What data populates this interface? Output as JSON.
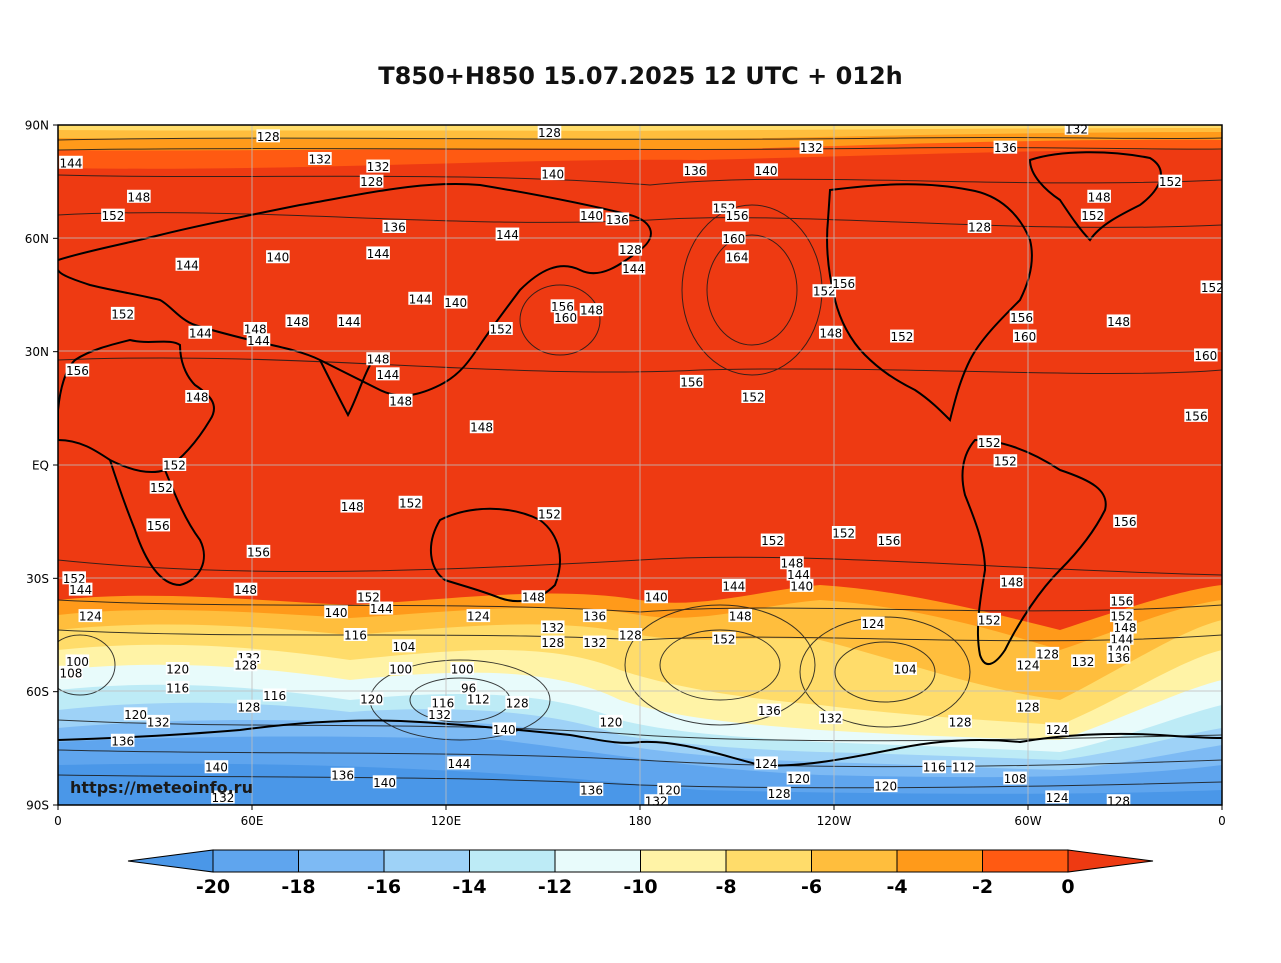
{
  "title": "T850+H850 15.07.2025 12 UTC + 012h",
  "watermark": "https://meteoinfo.ru",
  "y_ticks": [
    "90N",
    "60N",
    "30N",
    "EQ",
    "30S",
    "60S",
    "90S"
  ],
  "x_ticks": [
    "0",
    "60E",
    "120E",
    "180",
    "120W",
    "60W",
    "0"
  ],
  "colorbar": {
    "ticks": [
      "-20",
      "-18",
      "-16",
      "-14",
      "-12",
      "-10",
      "-8",
      "-6",
      "-4",
      "-2",
      "0"
    ],
    "colors": [
      "#4a97e8",
      "#5fa5ee",
      "#7dbaf4",
      "#9ed2f7",
      "#bdebf6",
      "#e8fbfb",
      "#fff3a6",
      "#ffdc6a",
      "#ffbe3d",
      "#ff9a1a",
      "#ff5a12",
      "#ee3a12"
    ]
  },
  "contour_labels": [
    {
      "t": "128",
      "lon": 65,
      "lat": 87
    },
    {
      "t": "128",
      "lon": 152,
      "lat": 88
    },
    {
      "t": "132",
      "lon": -127,
      "lat": 84
    },
    {
      "t": "132",
      "lon": -45,
      "lat": 89
    },
    {
      "t": "144",
      "lon": 4,
      "lat": 80
    },
    {
      "t": "132",
      "lon": 81,
      "lat": 81
    },
    {
      "t": "132",
      "lon": 99,
      "lat": 79
    },
    {
      "t": "128",
      "lon": 97,
      "lat": 75
    },
    {
      "t": "140",
      "lon": 153,
      "lat": 77
    },
    {
      "t": "136",
      "lon": -163,
      "lat": 78
    },
    {
      "t": "136",
      "lon": -67,
      "lat": 84
    },
    {
      "t": "140",
      "lon": -141,
      "lat": 78
    },
    {
      "t": "148",
      "lon": -38,
      "lat": 71
    },
    {
      "t": "152",
      "lon": 17,
      "lat": 66
    },
    {
      "t": "148",
      "lon": 25,
      "lat": 71
    },
    {
      "t": "136",
      "lon": 104,
      "lat": 63
    },
    {
      "t": "144",
      "lon": 139,
      "lat": 61
    },
    {
      "t": "140",
      "lon": 165,
      "lat": 66
    },
    {
      "t": "136",
      "lon": 173,
      "lat": 65
    },
    {
      "t": "128",
      "lon": 177,
      "lat": 57
    },
    {
      "t": "144",
      "lon": 178,
      "lat": 52
    },
    {
      "t": "152",
      "lon": -154,
      "lat": 68
    },
    {
      "t": "156",
      "lon": -150,
      "lat": 66
    },
    {
      "t": "160",
      "lon": -151,
      "lat": 60
    },
    {
      "t": "164",
      "lon": -150,
      "lat": 55
    },
    {
      "t": "152",
      "lon": -40,
      "lat": 66
    },
    {
      "t": "152",
      "lon": -16,
      "lat": 75
    },
    {
      "t": "128",
      "lon": -75,
      "lat": 63
    },
    {
      "t": "140",
      "lon": 68,
      "lat": 55
    },
    {
      "t": "144",
      "lon": 40,
      "lat": 53
    },
    {
      "t": "144",
      "lon": 99,
      "lat": 56
    },
    {
      "t": "144",
      "lon": 112,
      "lat": 44
    },
    {
      "t": "140",
      "lon": 123,
      "lat": 43
    },
    {
      "t": "156",
      "lon": 156,
      "lat": 42
    },
    {
      "t": "160",
      "lon": 157,
      "lat": 39
    },
    {
      "t": "148",
      "lon": 165,
      "lat": 41
    },
    {
      "t": "152",
      "lon": -123,
      "lat": 46
    },
    {
      "t": "156",
      "lon": -117,
      "lat": 48
    },
    {
      "t": "148",
      "lon": -121,
      "lat": 35
    },
    {
      "t": "152",
      "lon": -99,
      "lat": 34
    },
    {
      "t": "156",
      "lon": -62,
      "lat": 39
    },
    {
      "t": "160",
      "lon": -61,
      "lat": 34
    },
    {
      "t": "148",
      "lon": -32,
      "lat": 38
    },
    {
      "t": "160",
      "lon": -5,
      "lat": 29
    },
    {
      "t": "152",
      "lon": -3,
      "lat": 47
    },
    {
      "t": "152",
      "lon": 20,
      "lat": 40
    },
    {
      "t": "144",
      "lon": 44,
      "lat": 35
    },
    {
      "t": "148",
      "lon": 61,
      "lat": 36
    },
    {
      "t": "144",
      "lon": 62,
      "lat": 33
    },
    {
      "t": "148",
      "lon": 74,
      "lat": 38
    },
    {
      "t": "144",
      "lon": 90,
      "lat": 38
    },
    {
      "t": "152",
      "lon": 137,
      "lat": 36
    },
    {
      "t": "156",
      "lon": 6,
      "lat": 25
    },
    {
      "t": "148",
      "lon": 99,
      "lat": 28
    },
    {
      "t": "144",
      "lon": 102,
      "lat": 24
    },
    {
      "t": "148",
      "lon": 106,
      "lat": 17
    },
    {
      "t": "148",
      "lon": 43,
      "lat": 18
    },
    {
      "t": "148",
      "lon": 131,
      "lat": 10
    },
    {
      "t": "156",
      "lon": -164,
      "lat": 22
    },
    {
      "t": "152",
      "lon": -145,
      "lat": 18
    },
    {
      "t": "156",
      "lon": -8,
      "lat": 13
    },
    {
      "t": "152",
      "lon": -72,
      "lat": 6
    },
    {
      "t": "152",
      "lon": -67,
      "lat": 1
    },
    {
      "t": "152",
      "lon": 36,
      "lat": 0
    },
    {
      "t": "152",
      "lon": 32,
      "lat": -6
    },
    {
      "t": "156",
      "lon": 31,
      "lat": -16
    },
    {
      "t": "148",
      "lon": 91,
      "lat": -11
    },
    {
      "t": "152",
      "lon": 109,
      "lat": -10
    },
    {
      "t": "152",
      "lon": 152,
      "lat": -13
    },
    {
      "t": "152",
      "lon": -139,
      "lat": -20
    },
    {
      "t": "152",
      "lon": -117,
      "lat": -18
    },
    {
      "t": "156",
      "lon": -103,
      "lat": -20
    },
    {
      "t": "156",
      "lon": -30,
      "lat": -15
    },
    {
      "t": "156",
      "lon": 62,
      "lat": -23
    },
    {
      "t": "152",
      "lon": 5,
      "lat": -30
    },
    {
      "t": "144",
      "lon": 7,
      "lat": -33
    },
    {
      "t": "124",
      "lon": 10,
      "lat": -40
    },
    {
      "t": "148",
      "lon": 58,
      "lat": -33
    },
    {
      "t": "152",
      "lon": 96,
      "lat": -35
    },
    {
      "t": "140",
      "lon": 86,
      "lat": -39
    },
    {
      "t": "144",
      "lon": 100,
      "lat": -38
    },
    {
      "t": "116",
      "lon": 92,
      "lat": -45
    },
    {
      "t": "104",
      "lon": 107,
      "lat": -48
    },
    {
      "t": "100",
      "lon": 106,
      "lat": -54
    },
    {
      "t": "124",
      "lon": 130,
      "lat": -40
    },
    {
      "t": "148",
      "lon": 147,
      "lat": -35
    },
    {
      "t": "132",
      "lon": 153,
      "lat": -43
    },
    {
      "t": "128",
      "lon": 153,
      "lat": -47
    },
    {
      "t": "136",
      "lon": 166,
      "lat": -40
    },
    {
      "t": "132",
      "lon": 166,
      "lat": -47
    },
    {
      "t": "128",
      "lon": 177,
      "lat": -45
    },
    {
      "t": "140",
      "lon": -175,
      "lat": -35
    },
    {
      "t": "144",
      "lon": -151,
      "lat": -32
    },
    {
      "t": "148",
      "lon": -149,
      "lat": -40
    },
    {
      "t": "152",
      "lon": -154,
      "lat": -46
    },
    {
      "t": "148",
      "lon": -133,
      "lat": -26
    },
    {
      "t": "144",
      "lon": -131,
      "lat": -29
    },
    {
      "t": "140",
      "lon": -130,
      "lat": -32
    },
    {
      "t": "124",
      "lon": -108,
      "lat": -42
    },
    {
      "t": "104",
      "lon": -98,
      "lat": -54
    },
    {
      "t": "152",
      "lon": -72,
      "lat": -41
    },
    {
      "t": "148",
      "lon": -65,
      "lat": -31
    },
    {
      "t": "156",
      "lon": -31,
      "lat": -36
    },
    {
      "t": "152",
      "lon": -31,
      "lat": -40
    },
    {
      "t": "148",
      "lon": -30,
      "lat": -43
    },
    {
      "t": "144",
      "lon": -31,
      "lat": -46
    },
    {
      "t": "140",
      "lon": -32,
      "lat": -49
    },
    {
      "t": "136",
      "lon": -32,
      "lat": -51
    },
    {
      "t": "128",
      "lon": -54,
      "lat": -50
    },
    {
      "t": "132",
      "lon": -43,
      "lat": -52
    },
    {
      "t": "124",
      "lon": -60,
      "lat": -53
    },
    {
      "t": "100",
      "lon": 6,
      "lat": -52
    },
    {
      "t": "108",
      "lon": 4,
      "lat": -55
    },
    {
      "t": "120",
      "lon": 37,
      "lat": -54
    },
    {
      "t": "132",
      "lon": 59,
      "lat": -51
    },
    {
      "t": "128",
      "lon": 58,
      "lat": -53
    },
    {
      "t": "100",
      "lon": 125,
      "lat": -54
    },
    {
      "t": "96",
      "lon": 127,
      "lat": -59
    },
    {
      "t": "112",
      "lon": 130,
      "lat": -62
    },
    {
      "t": "116",
      "lon": 119,
      "lat": -63
    },
    {
      "t": "132",
      "lon": 118,
      "lat": -66
    },
    {
      "t": "128",
      "lon": 142,
      "lat": -63
    },
    {
      "t": "140",
      "lon": 138,
      "lat": -70
    },
    {
      "t": "120",
      "lon": 97,
      "lat": -62
    },
    {
      "t": "116",
      "lon": 37,
      "lat": -59
    },
    {
      "t": "116",
      "lon": 67,
      "lat": -61
    },
    {
      "t": "128",
      "lon": 59,
      "lat": -64
    },
    {
      "t": "120",
      "lon": 24,
      "lat": -66
    },
    {
      "t": "132",
      "lon": 31,
      "lat": -68
    },
    {
      "t": "136",
      "lon": 20,
      "lat": -73
    },
    {
      "t": "140",
      "lon": 49,
      "lat": -80
    },
    {
      "t": "136",
      "lon": 88,
      "lat": -82
    },
    {
      "t": "140",
      "lon": 101,
      "lat": -84
    },
    {
      "t": "144",
      "lon": 124,
      "lat": -79
    },
    {
      "t": "132",
      "lon": 51,
      "lat": -88
    },
    {
      "t": "120",
      "lon": 171,
      "lat": -68
    },
    {
      "t": "136",
      "lon": -140,
      "lat": -65
    },
    {
      "t": "132",
      "lon": -121,
      "lat": -67
    },
    {
      "t": "124",
      "lon": -141,
      "lat": -79
    },
    {
      "t": "120",
      "lon": -131,
      "lat": -83
    },
    {
      "t": "128",
      "lon": -81,
      "lat": -68
    },
    {
      "t": "128",
      "lon": -60,
      "lat": -64
    },
    {
      "t": "124",
      "lon": -51,
      "lat": -70
    },
    {
      "t": "116",
      "lon": -89,
      "lat": -80
    },
    {
      "t": "112",
      "lon": -80,
      "lat": -80
    },
    {
      "t": "108",
      "lon": -64,
      "lat": -83
    },
    {
      "t": "120",
      "lon": -104,
      "lat": -85
    },
    {
      "t": "124",
      "lon": -51,
      "lat": -88
    },
    {
      "t": "128",
      "lon": -32,
      "lat": -89
    },
    {
      "t": "136",
      "lon": 165,
      "lat": -86
    },
    {
      "t": "120",
      "lon": -171,
      "lat": -86
    },
    {
      "t": "132",
      "lon": -175,
      "lat": -89
    },
    {
      "t": "128",
      "lon": -137,
      "lat": -87
    }
  ]
}
